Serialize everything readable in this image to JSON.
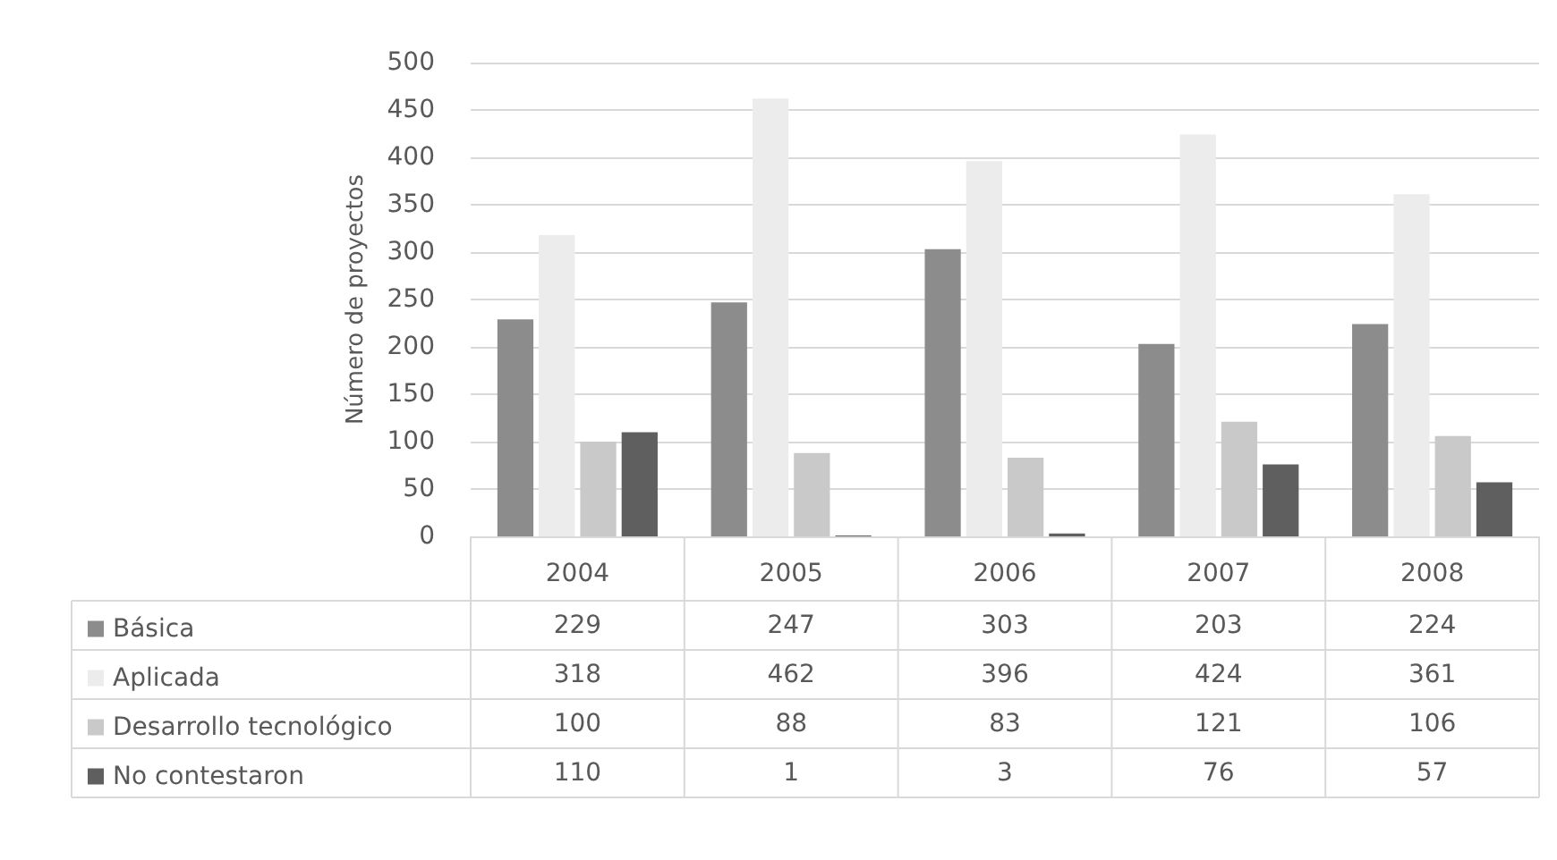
{
  "chart_data": {
    "type": "bar",
    "ylabel": "Número de proyectos",
    "categories": [
      "2004",
      "2005",
      "2006",
      "2007",
      "2008"
    ],
    "series": [
      {
        "name": "Básica",
        "color": "#8c8c8c",
        "values": [
          229,
          247,
          303,
          203,
          224
        ]
      },
      {
        "name": "Aplicada",
        "color": "#ececec",
        "values": [
          318,
          462,
          396,
          424,
          361
        ]
      },
      {
        "name": "Desarrollo tecnológico",
        "color": "#c9c9c9",
        "values": [
          100,
          88,
          83,
          121,
          106
        ]
      },
      {
        "name": "No contestaron",
        "color": "#5f5f5f",
        "values": [
          110,
          1,
          3,
          76,
          57
        ]
      }
    ],
    "ylim": [
      0,
      500
    ],
    "yticks": [
      0,
      50,
      100,
      150,
      200,
      250,
      300,
      350,
      400,
      450,
      500
    ],
    "grid": "y",
    "legend": "bottom left",
    "data_labels": true
  }
}
